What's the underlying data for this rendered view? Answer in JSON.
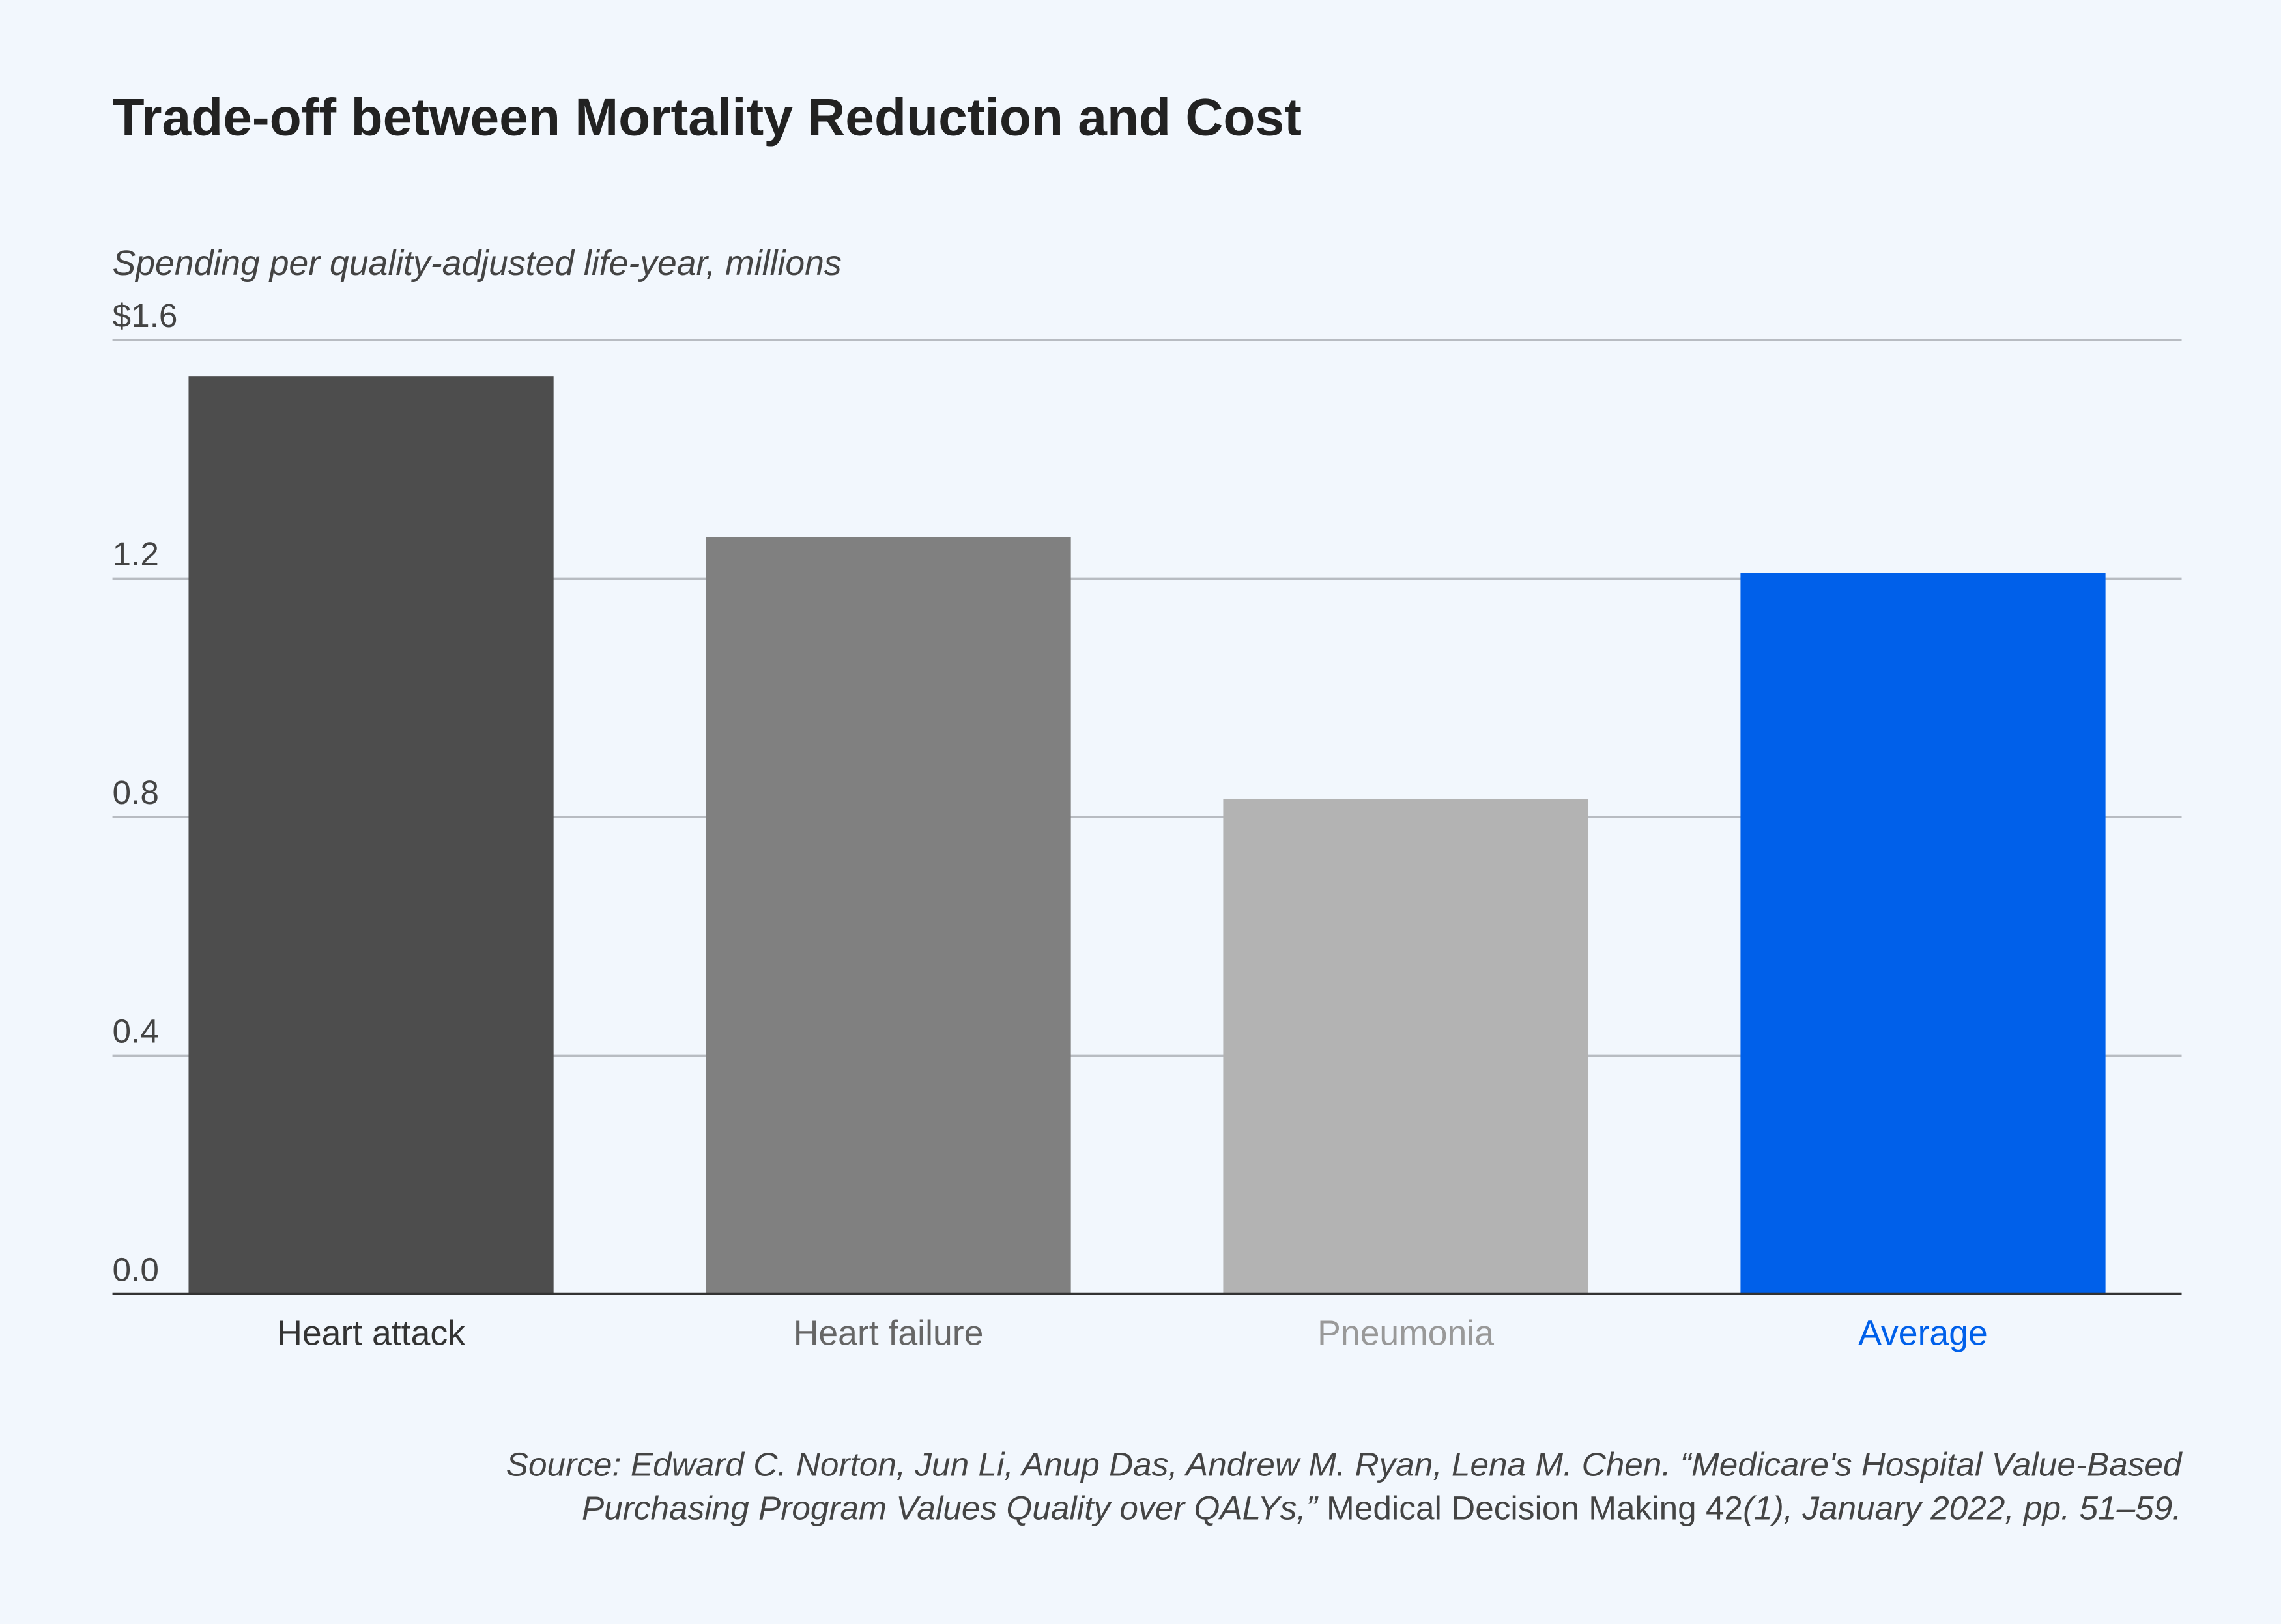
{
  "chart_data": {
    "type": "bar",
    "title": "Trade-off between Mortality Reduction and Cost",
    "ylabel": "Spending per quality-adjusted life-year, millions",
    "xlabel": "",
    "ylim": [
      0,
      1.6
    ],
    "yticks": [
      {
        "value": 0.0,
        "label": "0.0"
      },
      {
        "value": 0.4,
        "label": "0.4"
      },
      {
        "value": 0.8,
        "label": "0.8"
      },
      {
        "value": 1.2,
        "label": "1.2"
      },
      {
        "value": 1.6,
        "label": "$1.6"
      }
    ],
    "grid": true,
    "categories": [
      "Heart attack",
      "Heart failure",
      "Pneumonia",
      "Average"
    ],
    "values": [
      1.54,
      1.27,
      0.83,
      1.21
    ],
    "colors": [
      "#4d4d4d",
      "#808080",
      "#b3b3b3",
      "#0060ea"
    ],
    "label_colors": [
      "#333333",
      "#666666",
      "#999999",
      "#0060ea"
    ]
  },
  "source": {
    "line1": "Source: Edward C. Norton, Jun Li, Anup Das, Andrew M. Ryan, Lena M. Chen. “Medicare's Hospital Value-Based",
    "line2_italic_a": "Purchasing Program Values Quality over QALYs,” ",
    "line2_normal": "Medical Decision Making 42",
    "line2_italic_b": "(1), January 2022, pp. 51–59."
  }
}
